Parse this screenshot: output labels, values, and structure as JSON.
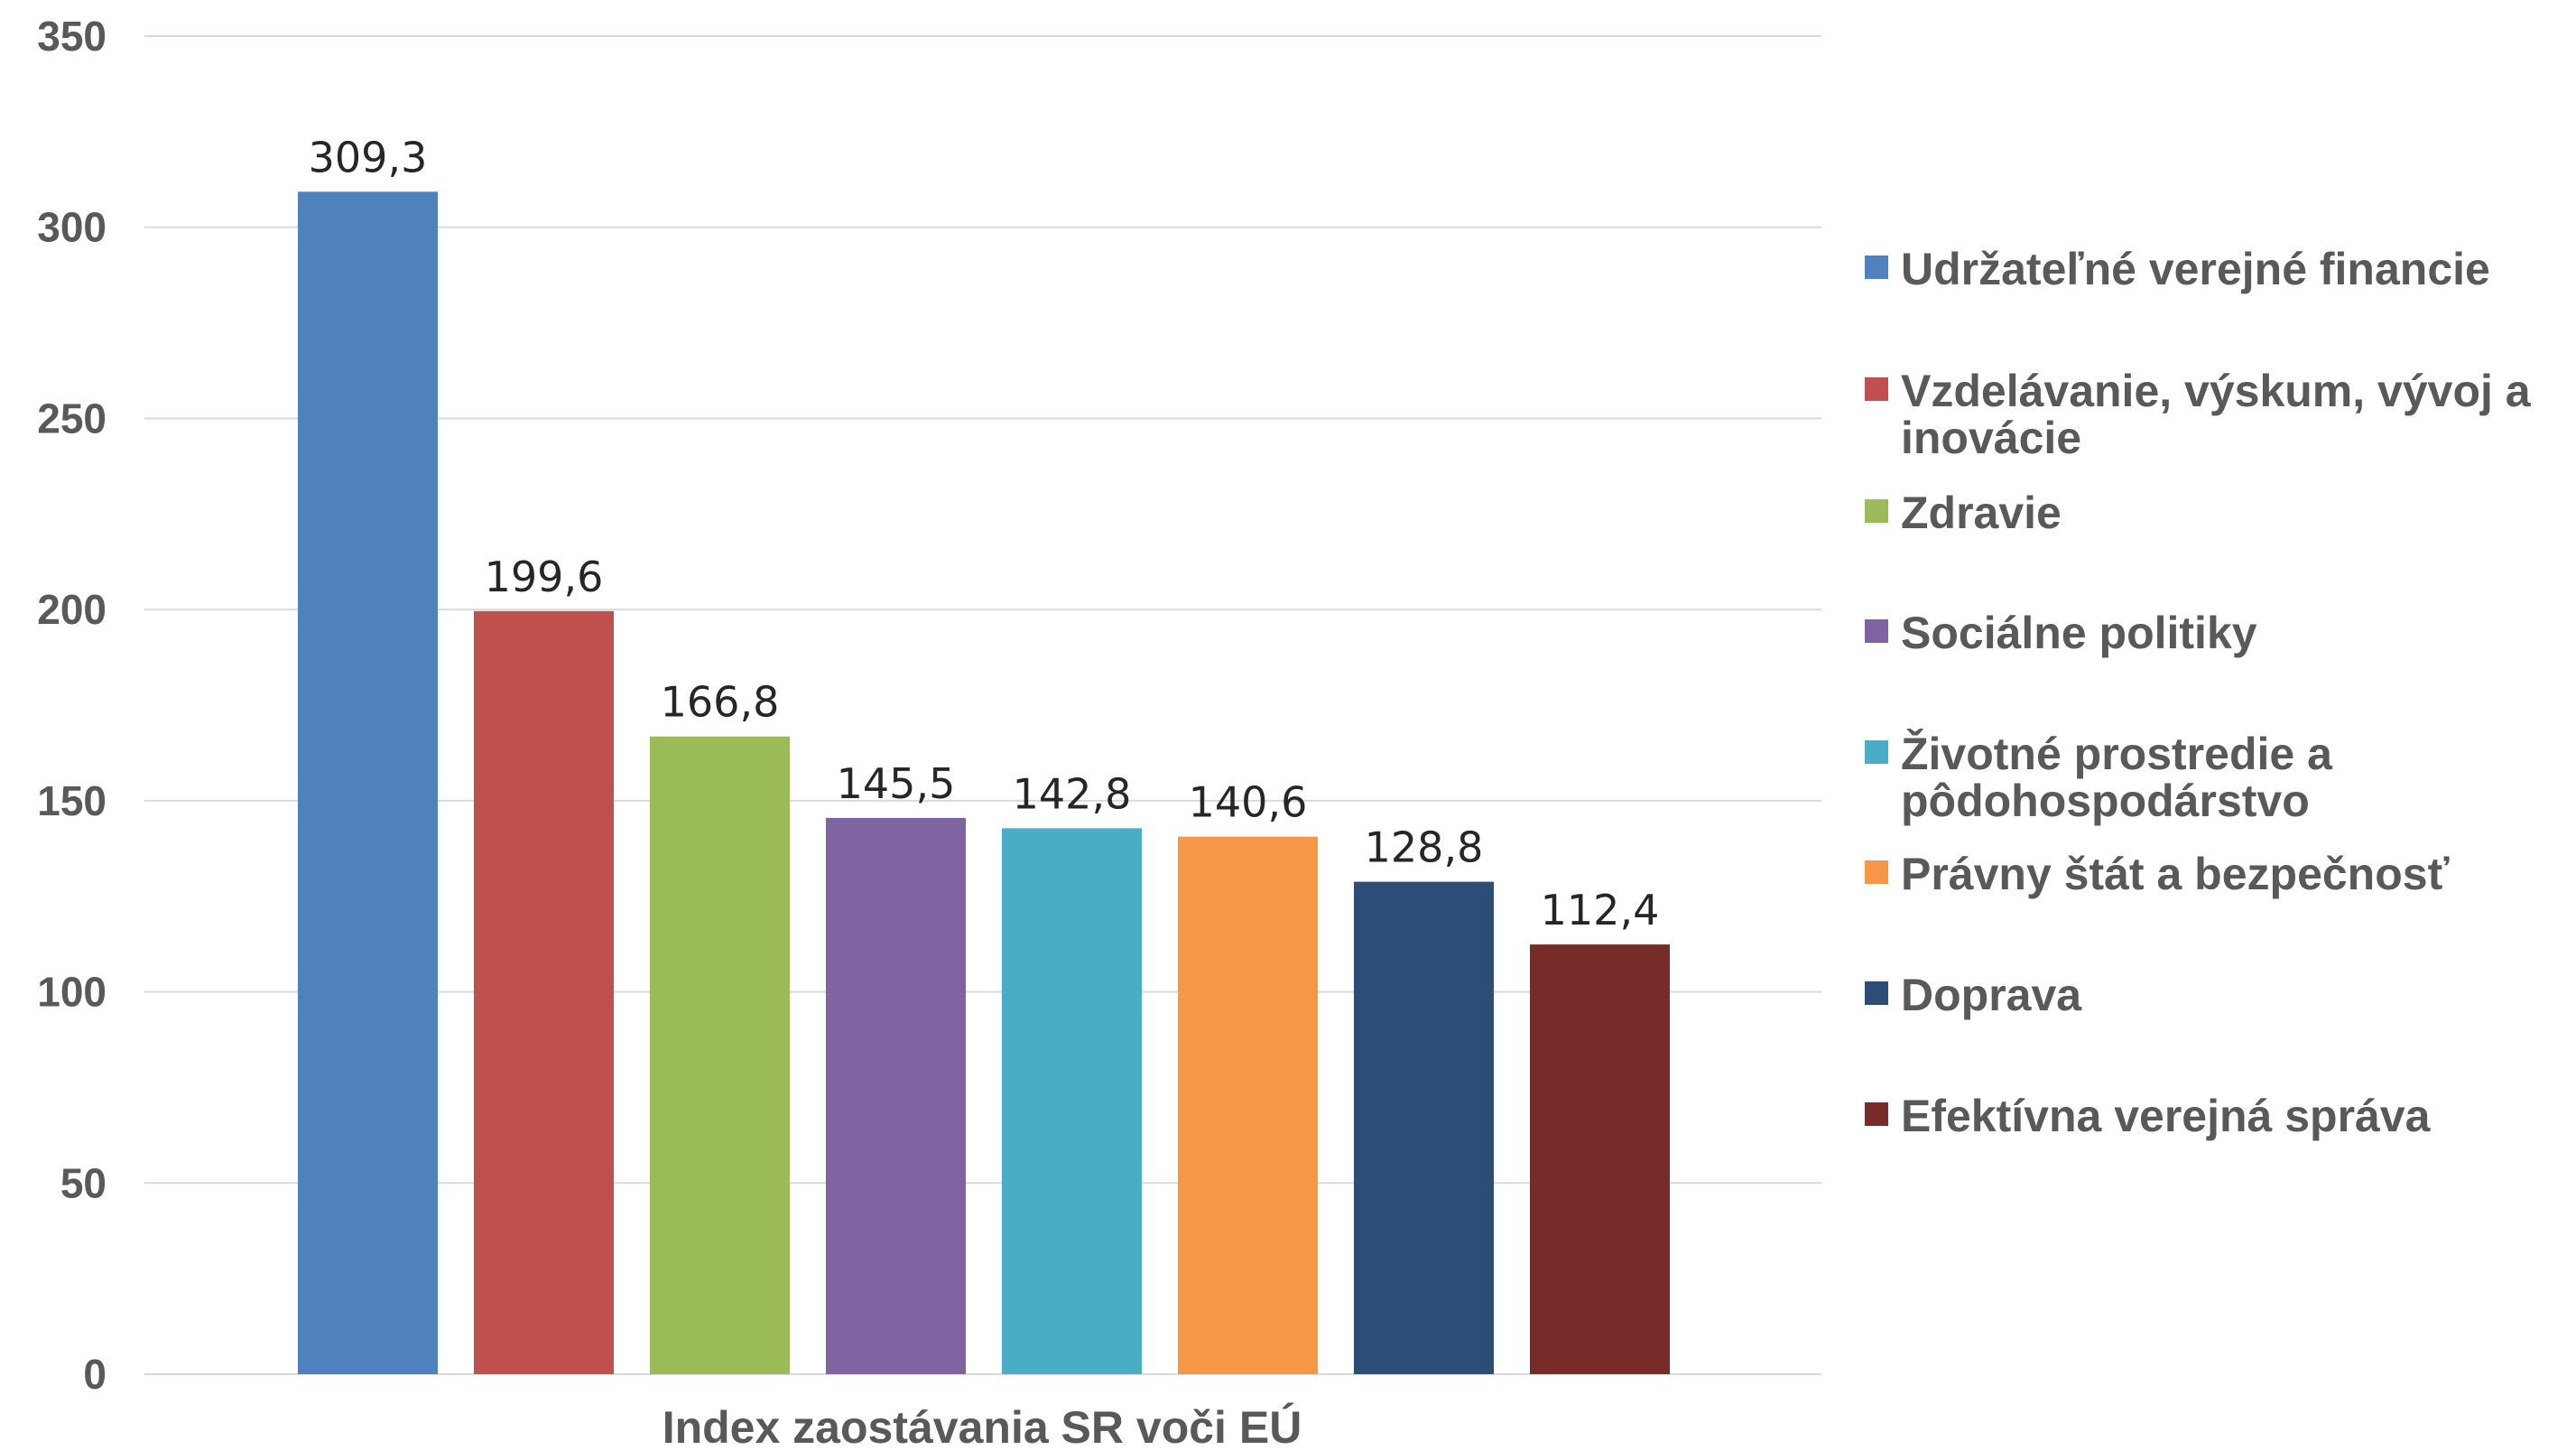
{
  "chart_data": {
    "type": "bar",
    "title": "",
    "xlabel": "Index zaostávania SR voči EÚ",
    "ylabel": "",
    "ylim": [
      0,
      350
    ],
    "yticks": [
      "0",
      "50",
      "100",
      "150",
      "200",
      "250",
      "300",
      "350"
    ],
    "grid": true,
    "legend_position": "right",
    "categories": [
      "Index zaostávania SR voči EÚ"
    ],
    "series": [
      {
        "name": "Udržateľné verejné financie",
        "value": 309.3,
        "label": "309,3",
        "color": "#4f81bd"
      },
      {
        "name": "Vzdelávanie, výskum, vývoj a inovácie",
        "value": 199.6,
        "label": "199,6",
        "color": "#c0504d"
      },
      {
        "name": "Zdravie",
        "value": 166.8,
        "label": "166,8",
        "color": "#9bbb59"
      },
      {
        "name": "Sociálne politiky",
        "value": 145.5,
        "label": "145,5",
        "color": "#8064a2"
      },
      {
        "name": "Životné prostredie a pôdohospodárstvo",
        "value": 142.8,
        "label": "142,8",
        "color": "#4bacc6"
      },
      {
        "name": "Právny štát a bezpečnosť",
        "value": 140.6,
        "label": "140,6",
        "color": "#f79646"
      },
      {
        "name": "Doprava",
        "value": 128.8,
        "label": "128,8",
        "color": "#2c4d75"
      },
      {
        "name": "Efektívna verejná správa",
        "value": 112.4,
        "label": "112,4",
        "color": "#772c2a"
      }
    ]
  }
}
